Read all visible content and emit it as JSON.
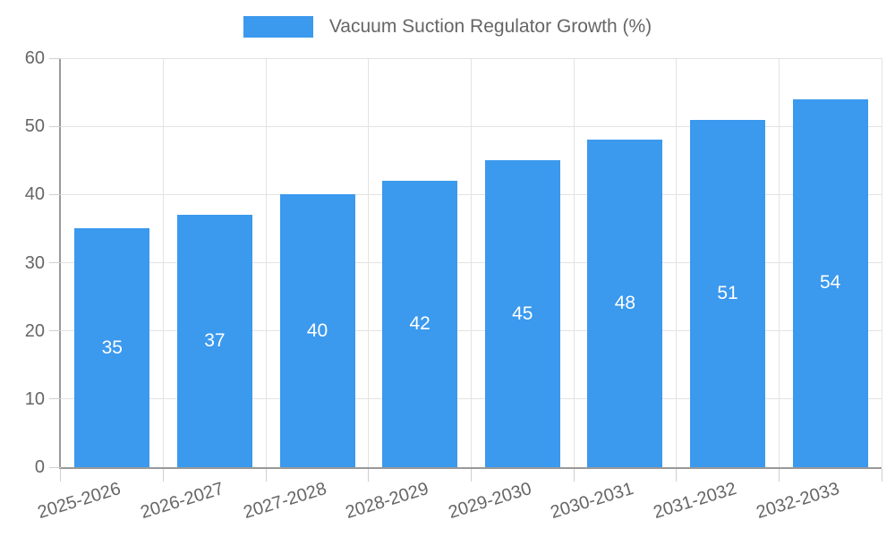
{
  "chart_data": {
    "type": "bar",
    "title": "Vacuum Suction Regulator Growth (%)",
    "categories": [
      "2025-2026",
      "2026-2027",
      "2027-2028",
      "2028-2029",
      "2029-2030",
      "2030-2031",
      "2031-2032",
      "2032-2033"
    ],
    "values": [
      35,
      37,
      40,
      42,
      45,
      48,
      51,
      54
    ],
    "xlabel": "",
    "ylabel": "",
    "ylim": [
      0,
      60
    ],
    "ytick_step": 10,
    "grid": true,
    "legend_position": "top-center",
    "value_labels": "inside-middle",
    "colors": {
      "bar": "#3B99EE",
      "value_label": "#FFFFFF",
      "axis": "#999999",
      "gridline": "#E3E3E3",
      "tick": "#CFCFCF",
      "text": "#666666",
      "background": "#FFFFFF"
    }
  }
}
